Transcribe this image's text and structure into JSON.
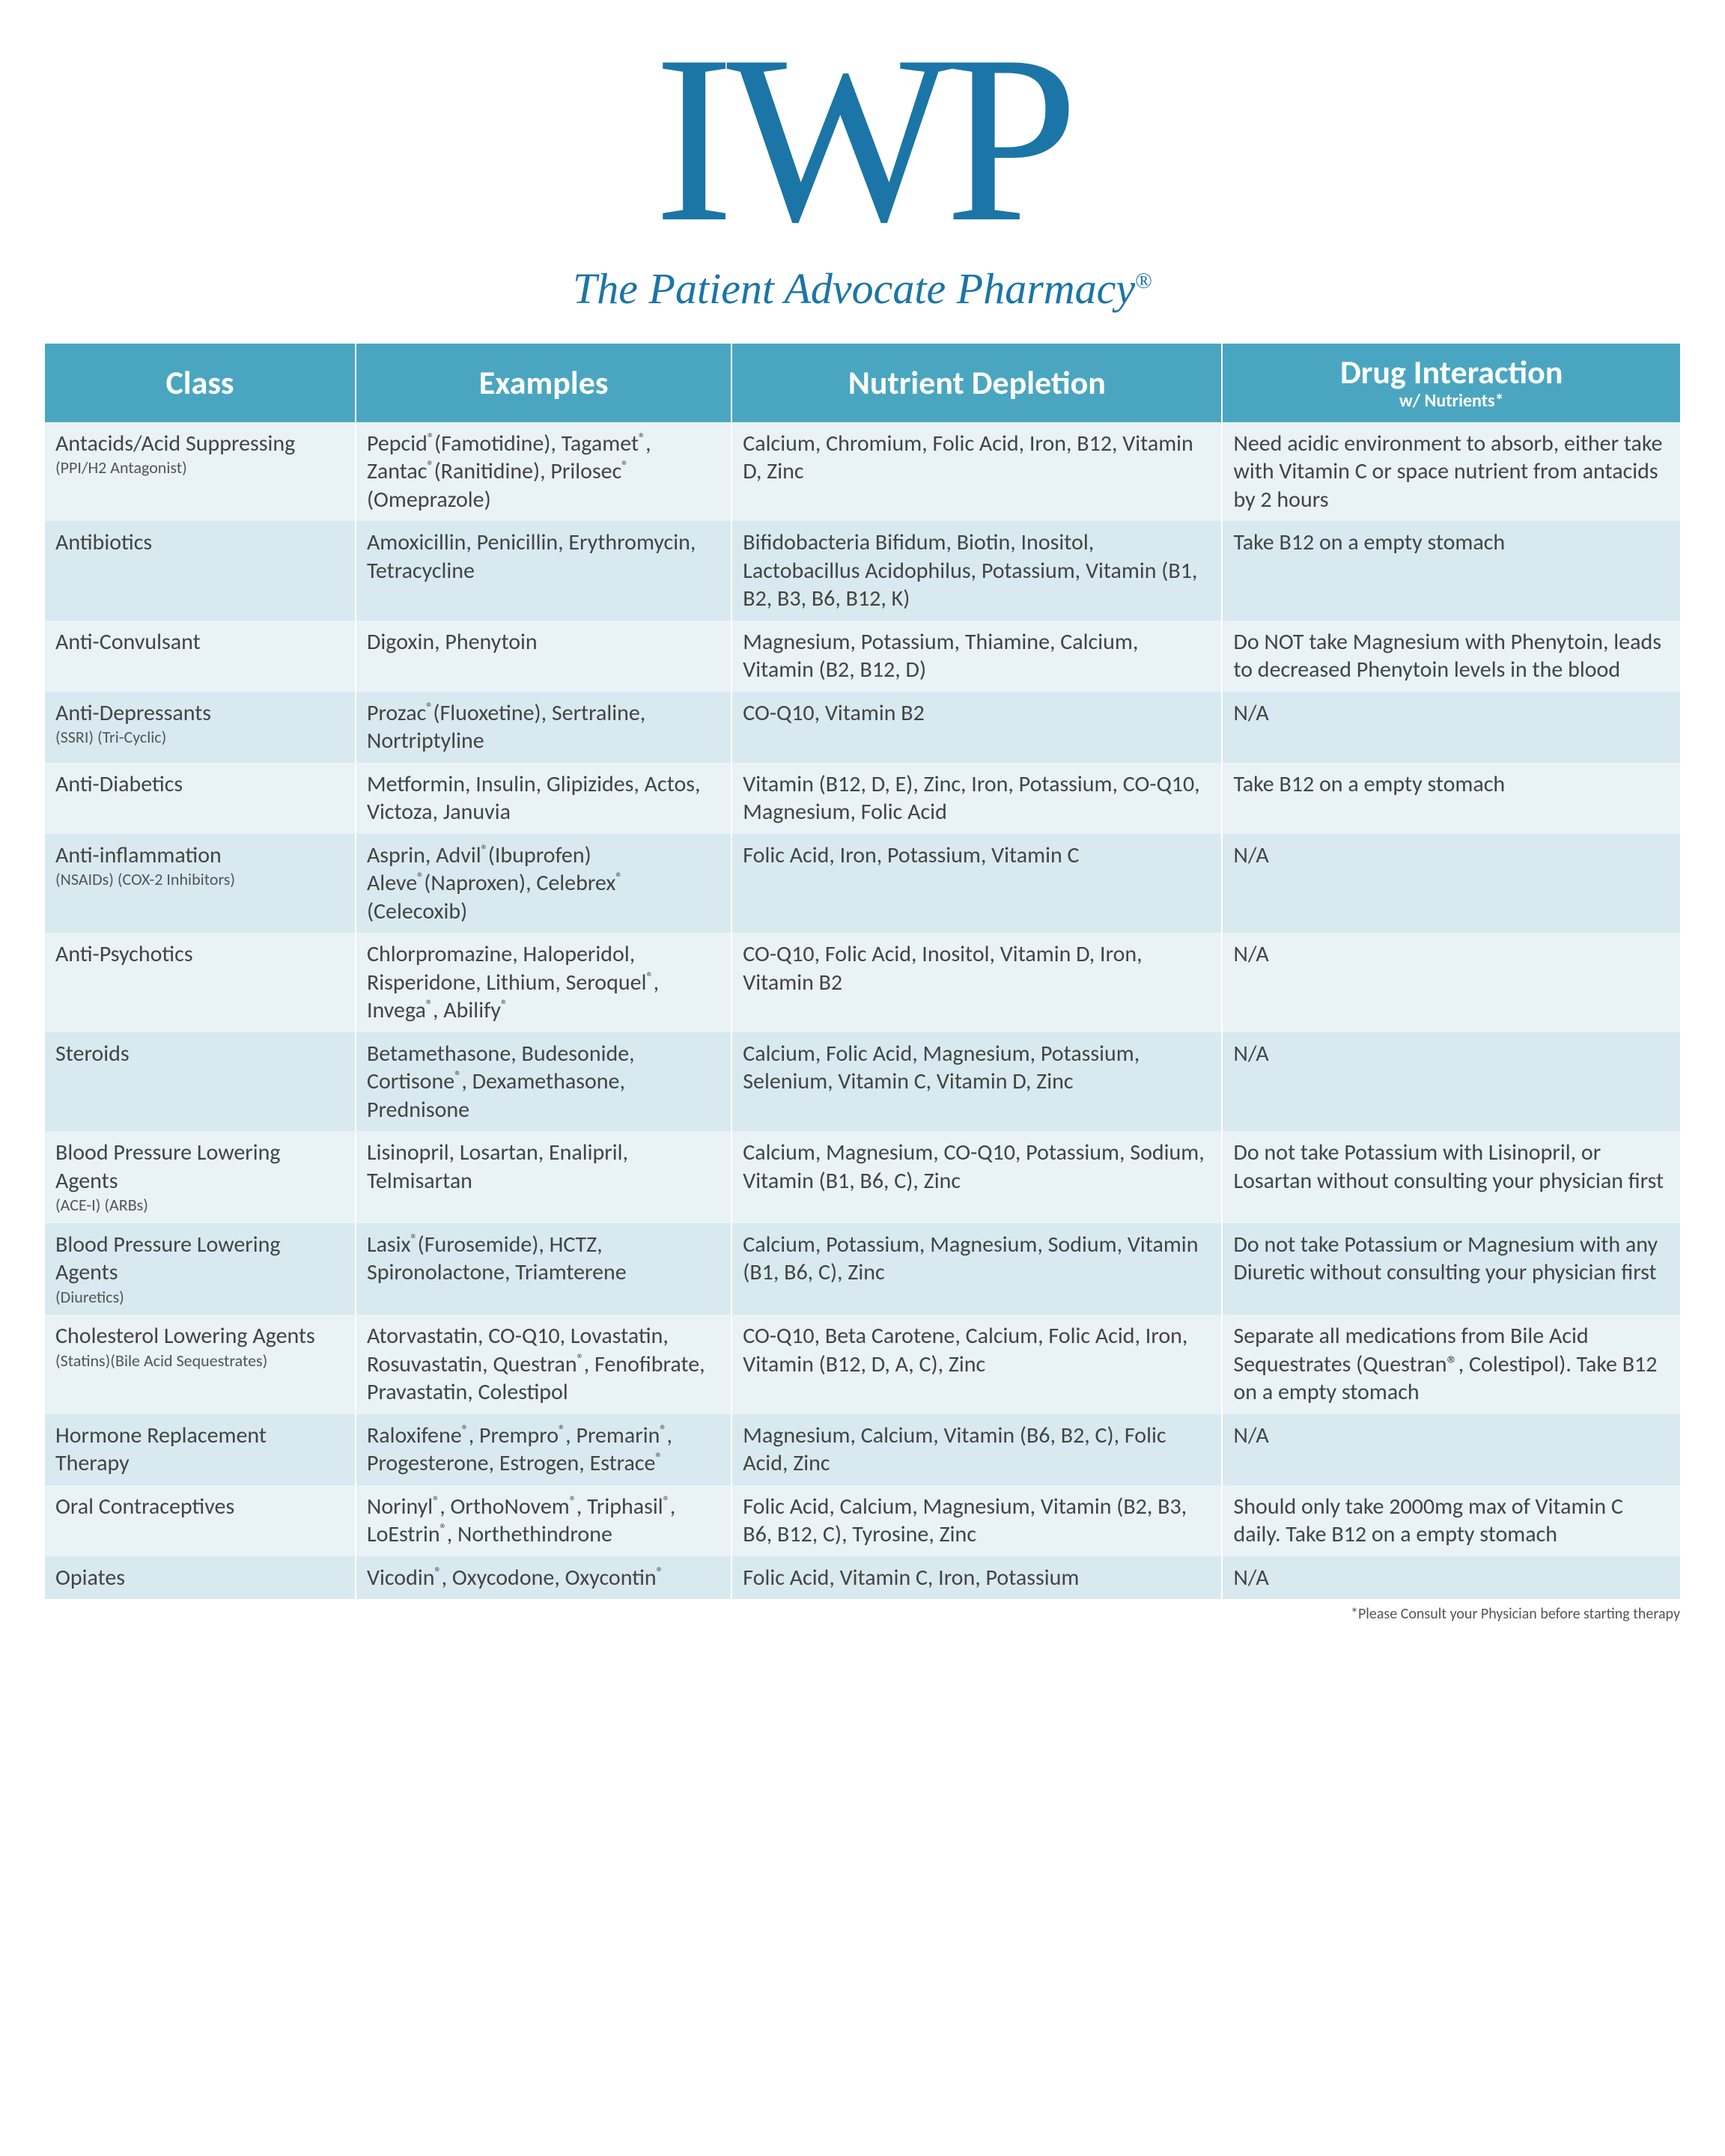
{
  "brand": {
    "logo_text": "IWP",
    "tagline_prefix": "The Patient Advocate Pharmacy",
    "tagline_reg": "®",
    "logo_color": "#1b75a7"
  },
  "table": {
    "header_bg": "#4aa6c0",
    "row_bg_odd": "#e9f2f5",
    "row_bg_even": "#d8eaef",
    "columns": [
      {
        "title": "Class",
        "sub": ""
      },
      {
        "title": "Examples",
        "sub": ""
      },
      {
        "title": "Nutrient Depletion",
        "sub": ""
      },
      {
        "title": "Drug Interaction",
        "sub": "w/ Nutrients*"
      }
    ],
    "rows": [
      {
        "class_main": "Antacids/Acid Suppressing",
        "class_sub": "(PPI/H2 Antagonist)",
        "examples_html": "Pepcid<span class='reg-sm'>®</span>(Famotidine), Tagamet<span class='reg-sm'>®</span>, Zantac<span class='reg-sm'>®</span>(Ranitidine), Prilosec<span class='reg-sm'>®</span> (Omeprazole)",
        "depletion": "Calcium, Chromium, Folic Acid, Iron, B12, Vitamin D, Zinc",
        "interaction": "Need acidic environment to absorb, either take with Vitamin C or space nutrient from antacids by 2 hours"
      },
      {
        "class_main": "Antibiotics",
        "class_sub": "",
        "examples_html": "Amoxicillin, Penicillin, Erythromycin, Tetracycline",
        "depletion": "Bifidobacteria Bifidum, Biotin, Inositol, Lactobacillus Acidophilus, Potassium, Vitamin (B1, B2, B3, B6, B12, K)",
        "interaction": "Take B12 on a empty stomach"
      },
      {
        "class_main": "Anti-Convulsant",
        "class_sub": "",
        "examples_html": "Digoxin, Phenytoin",
        "depletion": "Magnesium, Potassium, Thiamine, Calcium, Vitamin (B2, B12, D)",
        "interaction": "Do NOT take Magnesium with Phenytoin, leads to decreased Phenytoin levels in the blood"
      },
      {
        "class_main": "Anti-Depressants",
        "class_sub": "(SSRI) (Tri-Cyclic)",
        "examples_html": "Prozac<span class='reg-sm'>®</span>(Fluoxetine), Sertraline, Nortriptyline",
        "depletion": "CO-Q10, Vitamin B2",
        "interaction": "N/A"
      },
      {
        "class_main": "Anti-Diabetics",
        "class_sub": "",
        "examples_html": "Metformin, Insulin, Glipizides, Actos, Victoza, Januvia",
        "depletion": "Vitamin (B12, D, E), Zinc, Iron, Potassium, CO-Q10, Magnesium, Folic Acid",
        "interaction": "Take B12 on a empty stomach"
      },
      {
        "class_main": "Anti-inflammation",
        "class_sub": "(NSAIDs) (COX-2 Inhibitors)",
        "examples_html": "Asprin, Advil<span class='reg-sm'>®</span>(Ibuprofen) Aleve<span class='reg-sm'>®</span>(Naproxen), Celebrex<span class='reg-sm'>®</span> (Celecoxib)",
        "depletion": "Folic Acid, Iron, Potassium, Vitamin C",
        "interaction": "N/A"
      },
      {
        "class_main": "Anti-Psychotics",
        "class_sub": "",
        "examples_html": "Chlorpromazine, Haloperidol, Risperidone, Lithium, Seroquel<span class='reg-sm'>®</span>, Invega<span class='reg-sm'>®</span>, Abilify<span class='reg-sm'>®</span>",
        "depletion": "CO-Q10, Folic Acid, Inositol, Vitamin D, Iron, Vitamin B2",
        "interaction": "N/A"
      },
      {
        "class_main": "Steroids",
        "class_sub": "",
        "examples_html": "Betamethasone, Budesonide, Cortisone<span class='reg-sm'>®</span>, Dexamethasone, Prednisone",
        "depletion": "Calcium, Folic Acid, Magnesium, Potassium, Selenium, Vitamin C, Vitamin D, Zinc",
        "interaction": "N/A"
      },
      {
        "class_main": "Blood Pressure Lowering Agents",
        "class_sub": "(ACE-I) (ARBs)",
        "examples_html": "Lisinopril, Losartan, Enalipril, Telmisartan",
        "depletion": "Calcium, Magnesium, CO-Q10, Potassium, Sodium, Vitamin (B1, B6, C), Zinc",
        "interaction": "Do not take Potassium with Lisinopril, or Losartan without consulting your physician first"
      },
      {
        "class_main": "Blood Pressure Lowering Agents",
        "class_sub": "(Diuretics)",
        "examples_html": "Lasix<span class='reg-sm'>®</span>(Furosemide), HCTZ, Spironolactone, Triamterene",
        "depletion": "Calcium, Potassium, Magnesium, Sodium, Vitamin (B1, B6, C), Zinc",
        "interaction": "Do not take Potassium or Magnesium with any Diuretic without consulting your physician first"
      },
      {
        "class_main": "Cholesterol Lowering Agents",
        "class_sub": "(Statins)(Bile Acid Sequestrates)",
        "examples_html": "Atorvastatin, CO-Q10, Lovastatin, Rosuvastatin, Questran<span class='reg-sm'>®</span>, Fenofibrate, Pravastatin, Colestipol",
        "depletion": "CO-Q10, Beta Carotene, Calcium, Folic Acid, Iron, Vitamin (B12, D, A, C), Zinc",
        "interaction": "Separate all medications from Bile Acid Sequestrates (Questran®, Colestipol). Take B12 on a empty stomach"
      },
      {
        "class_main": "Hormone Replacement Therapy",
        "class_sub": "",
        "examples_html": "Raloxifene<span class='reg-sm'>®</span>, Prempro<span class='reg-sm'>®</span>, Premarin<span class='reg-sm'>®</span>, Progesterone, Estrogen, Estrace<span class='reg-sm'>®</span>",
        "depletion": "Magnesium, Calcium, Vitamin (B6, B2, C), Folic Acid, Zinc",
        "interaction": "N/A"
      },
      {
        "class_main": "Oral Contraceptives",
        "class_sub": "",
        "examples_html": "Norinyl<span class='reg-sm'>®</span>, OrthoNovem<span class='reg-sm'>®</span>, Triphasil<span class='reg-sm'>®</span>, LoEstrin<span class='reg-sm'>®</span>, Northethindrone",
        "depletion": "Folic Acid, Calcium, Magnesium, Vitamin (B2, B3, B6, B12, C), Tyrosine, Zinc",
        "interaction": "Should only take 2000mg max of Vitamin C daily. Take B12 on a empty stomach"
      },
      {
        "class_main": "Opiates",
        "class_sub": "",
        "examples_html": "Vicodin<span class='reg-sm'>®</span>, Oxycodone, Oxycontin<span class='reg-sm'>®</span>",
        "depletion": "Folic Acid, Vitamin C, Iron, Potassium",
        "interaction": "N/A"
      }
    ]
  },
  "footnote": "*Please Consult your Physician before starting therapy"
}
